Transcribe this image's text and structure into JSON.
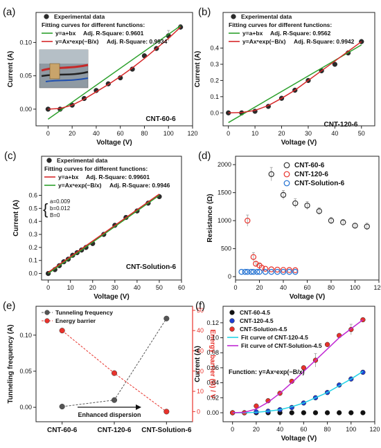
{
  "chart_data": [
    {
      "id": "a",
      "type": "scatter",
      "panel_label": "(a)",
      "xlabel": "Voltage (V)",
      "ylabel": "Current (A)",
      "xlim": [
        -10,
        120
      ],
      "ylim": [
        -0.025,
        0.145
      ],
      "xticks": [
        0,
        20,
        40,
        60,
        80,
        100,
        120
      ],
      "xticklabels": [
        "0",
        "20",
        "40",
        "60",
        "80",
        "100",
        "120"
      ],
      "yticks": [
        0.0,
        0.05,
        0.1
      ],
      "yticklabels": [
        "0.00",
        "0.05",
        "0.10"
      ],
      "annotation": "CNT-60-6",
      "legend": {
        "placement": "top-left",
        "entries": [
          {
            "kind": "marker",
            "label": "Experimental data",
            "color": "#2b2b2b"
          },
          {
            "kind": "text",
            "label": "Fitting curves for different functions:"
          },
          {
            "kind": "line",
            "label": "y=a+bx",
            "stat": "Adj. R-Square: 0.9601",
            "color": "#2ca02c"
          },
          {
            "kind": "line",
            "label": "y=Axⁿexp(−B/x)",
            "stat": "Adj. R-Square: 0.9934",
            "color": "#d62728"
          }
        ]
      },
      "inset_photo": true,
      "series": [
        {
          "kind": "points",
          "color": "#2b2b2b",
          "x": [
            0,
            10,
            20,
            30,
            40,
            50,
            60,
            70,
            80,
            90,
            100,
            110
          ],
          "y": [
            0.0,
            0.0,
            0.006,
            0.016,
            0.028,
            0.038,
            0.047,
            0.06,
            0.08,
            0.091,
            0.11,
            0.123
          ],
          "err": [
            0,
            0,
            0,
            0,
            0,
            0,
            0,
            0,
            0,
            0,
            0.008,
            0.004
          ]
        },
        {
          "kind": "line",
          "color": "#2ca02c",
          "x": [
            0,
            110
          ],
          "y": [
            -0.015,
            0.125
          ]
        },
        {
          "kind": "line",
          "color": "#d62728",
          "x": [
            0,
            10,
            20,
            30,
            40,
            50,
            60,
            70,
            80,
            90,
            100,
            110
          ],
          "y": [
            0.0,
            0.001,
            0.006,
            0.015,
            0.026,
            0.037,
            0.049,
            0.062,
            0.076,
            0.091,
            0.106,
            0.123
          ]
        }
      ]
    },
    {
      "id": "b",
      "type": "scatter",
      "panel_label": "(b)",
      "xlabel": "Voltage (V)",
      "ylabel": "Current (A)",
      "xlim": [
        -2,
        55
      ],
      "ylim": [
        -0.08,
        0.62
      ],
      "xticks": [
        0,
        10,
        20,
        30,
        40,
        50
      ],
      "xticklabels": [
        "0",
        "10",
        "20",
        "30",
        "40",
        "50"
      ],
      "yticks": [
        0.0,
        0.1,
        0.2,
        0.3,
        0.4
      ],
      "yticklabels": [
        "0.0",
        "0.1",
        "0.2",
        "0.3",
        "0.4"
      ],
      "annotation": "CNT-120-6",
      "legend": {
        "placement": "top-left",
        "entries": [
          {
            "kind": "marker",
            "label": "Experimental data",
            "color": "#2b2b2b"
          },
          {
            "kind": "text",
            "label": "Fitting curves for different functions:"
          },
          {
            "kind": "line",
            "label": "y=a+bx",
            "stat": "Adj. R-Square: 0.9562",
            "color": "#2ca02c"
          },
          {
            "kind": "line",
            "label": "y=Axⁿexp(−B/x)",
            "stat": "Adj. R-Square: 0.9942",
            "color": "#d62728"
          }
        ]
      },
      "series": [
        {
          "kind": "points",
          "color": "#2b2b2b",
          "x": [
            0,
            5,
            10,
            15,
            20,
            25,
            30,
            35,
            40,
            45,
            50
          ],
          "y": [
            0.0,
            0.0,
            0.01,
            0.04,
            0.09,
            0.14,
            0.2,
            0.26,
            0.3,
            0.37,
            0.44
          ],
          "err": [
            0,
            0,
            0,
            0,
            0,
            0,
            0,
            0,
            0,
            0,
            0
          ]
        },
        {
          "kind": "line",
          "color": "#2ca02c",
          "x": [
            0,
            50
          ],
          "y": [
            -0.06,
            0.42
          ]
        },
        {
          "kind": "line",
          "color": "#d62728",
          "x": [
            0,
            5,
            10,
            15,
            20,
            25,
            30,
            35,
            40,
            45,
            50
          ],
          "y": [
            0.0,
            0.002,
            0.015,
            0.045,
            0.09,
            0.14,
            0.2,
            0.26,
            0.32,
            0.38,
            0.44
          ]
        }
      ]
    },
    {
      "id": "c",
      "type": "scatter",
      "panel_label": "(c)",
      "xlabel": "Voltage (V)",
      "ylabel": "Current (A)",
      "xlim": [
        -3,
        60
      ],
      "ylim": [
        -0.05,
        0.9
      ],
      "xticks": [
        0,
        10,
        20,
        30,
        40,
        50,
        60
      ],
      "xticklabels": [
        "0",
        "10",
        "20",
        "30",
        "40",
        "50",
        "60"
      ],
      "yticks": [
        0.0,
        0.1,
        0.2,
        0.3,
        0.4,
        0.5,
        0.6
      ],
      "yticklabels": [
        "0.0",
        "0.1",
        "0.2",
        "0.3",
        "0.4",
        "0.5",
        "0.6"
      ],
      "annotation": "CNT-Solution-6",
      "params": [
        "a=0.009",
        "b=0.012",
        "B=0"
      ],
      "legend": {
        "placement": "top-left",
        "entries": [
          {
            "kind": "marker",
            "label": "Experimental data",
            "color": "#2b2b2b"
          },
          {
            "kind": "text",
            "label": "Fitting curves for different functions:"
          },
          {
            "kind": "line",
            "label": "y=a+bx",
            "stat": "Adj. R-Square: 0.99601",
            "color": "#d62728"
          },
          {
            "kind": "line",
            "label": "y=Axⁿexp(−B/x)",
            "stat": "Adj. R-Square: 0.9946",
            "color": "#2ca02c"
          }
        ]
      },
      "series": [
        {
          "kind": "points",
          "color": "#2b2b2b",
          "x": [
            0,
            3,
            5,
            7,
            9,
            11,
            13,
            15,
            17,
            20,
            25,
            30,
            35,
            40,
            45,
            50
          ],
          "y": [
            0.0,
            0.03,
            0.06,
            0.09,
            0.11,
            0.14,
            0.16,
            0.18,
            0.2,
            0.23,
            0.3,
            0.37,
            0.43,
            0.48,
            0.54,
            0.59
          ],
          "err": [
            0,
            0,
            0,
            0,
            0,
            0,
            0,
            0,
            0,
            0,
            0,
            0,
            0,
            0,
            0,
            0
          ]
        },
        {
          "kind": "line",
          "color": "#2ca02c",
          "x": [
            0,
            50
          ],
          "y": [
            0.0,
            0.6
          ]
        },
        {
          "kind": "line",
          "color": "#d62728",
          "x": [
            0,
            50
          ],
          "y": [
            0.009,
            0.609
          ]
        }
      ]
    },
    {
      "id": "d",
      "type": "scatter",
      "panel_label": "(d)",
      "xlabel": "Voltage (V)",
      "ylabel": "Resistance (Ω)",
      "xlim": [
        0,
        120
      ],
      "ylim": [
        -60,
        2150
      ],
      "xticks": [
        0,
        20,
        40,
        60,
        80,
        100,
        120
      ],
      "xticklabels": [
        "0",
        "20",
        "40",
        "60",
        "80",
        "100",
        "120"
      ],
      "yticks": [
        0,
        500,
        1000,
        1500,
        2000
      ],
      "yticklabels": [
        "0",
        "500",
        "1000",
        "1500",
        "2000"
      ],
      "legend": {
        "placement": "top-right",
        "entries": [
          {
            "kind": "open-marker",
            "label": "CNT-60-6",
            "color": "#333333"
          },
          {
            "kind": "open-marker",
            "label": "CNT-120-6",
            "color": "#e8322b"
          },
          {
            "kind": "open-marker",
            "label": "CNT-Solution-6",
            "color": "#1f6fd1"
          }
        ]
      },
      "series": [
        {
          "name": "CNT-60-6",
          "kind": "open-points",
          "color": "#333333",
          "x": [
            30,
            40,
            50,
            60,
            70,
            80,
            90,
            100,
            110
          ],
          "y": [
            1830,
            1460,
            1310,
            1270,
            1170,
            1000,
            970,
            910,
            895
          ],
          "err": [
            120,
            80,
            80,
            70,
            60,
            60,
            50,
            40,
            60
          ]
        },
        {
          "name": "CNT-120-6",
          "kind": "open-points",
          "color": "#e8322b",
          "x": [
            10,
            15,
            17,
            20,
            22,
            25,
            30,
            35,
            40,
            45,
            50
          ],
          "y": [
            1000,
            350,
            230,
            200,
            160,
            140,
            130,
            125,
            120,
            118,
            115
          ],
          "err": [
            100,
            80,
            40,
            30,
            0,
            0,
            0,
            0,
            0,
            0,
            0
          ]
        },
        {
          "name": "CNT-Solution-6",
          "kind": "open-points",
          "color": "#1f6fd1",
          "x": [
            5,
            8,
            10,
            13,
            15,
            18,
            20,
            25,
            30,
            35,
            40,
            45,
            50
          ],
          "y": [
            85,
            85,
            85,
            85,
            85,
            85,
            85,
            85,
            85,
            85,
            85,
            85,
            85
          ],
          "err": [
            0,
            0,
            0,
            0,
            0,
            0,
            0,
            0,
            0,
            0,
            0,
            0,
            0
          ]
        }
      ]
    },
    {
      "id": "e",
      "type": "line",
      "panel_label": "(e)",
      "xlabel": "",
      "ylabel": "Tunneling frequency (A)",
      "y2label": "Energy barrier (B) / V",
      "categories": [
        "CNT-60-6",
        "CNT-120-6",
        "CNT-Solution-6"
      ],
      "ylim": [
        -0.02,
        0.14
      ],
      "y2lim": [
        -5,
        52
      ],
      "yticks": [
        0.0,
        0.05,
        0.1
      ],
      "yticklabels": [
        "0.00",
        "0.05",
        "0.10"
      ],
      "y2ticks": [
        0,
        10,
        20,
        30,
        40,
        50
      ],
      "y2ticklabels": [
        "0",
        "10",
        "20",
        "30",
        "40",
        "50"
      ],
      "arrow_label": "Enhanced dispersion",
      "legend": {
        "placement": "top-left",
        "entries": [
          {
            "kind": "marker-line",
            "label": "Tunneling frequency",
            "color": "#555555"
          },
          {
            "kind": "marker-line",
            "label": "Energy barrier",
            "color": "#e8322b"
          }
        ]
      },
      "series": [
        {
          "name": "Tunneling frequency",
          "axis": "left",
          "color": "#555555",
          "values": [
            0.001,
            0.01,
            0.123
          ]
        },
        {
          "name": "Energy barrier",
          "axis": "right",
          "color": "#e8322b",
          "values": [
            40,
            19,
            0
          ]
        }
      ]
    },
    {
      "id": "f",
      "type": "scatter",
      "panel_label": "(f)",
      "xlabel": "Voltage (V)",
      "ylabel": "Current (A)",
      "xlim": [
        -8,
        120
      ],
      "ylim": [
        -0.012,
        0.142
      ],
      "xticks": [
        0,
        20,
        40,
        60,
        80,
        100,
        120
      ],
      "xticklabels": [
        "0",
        "20",
        "40",
        "60",
        "80",
        "100",
        "120"
      ],
      "yticks": [
        0.0,
        0.02,
        0.04,
        0.06,
        0.08,
        0.1,
        0.12
      ],
      "yticklabels": [
        "0.00",
        "0.02",
        "0.04",
        "0.06",
        "0.08",
        "0.10",
        "0.12"
      ],
      "function_text": "Function: y=Axⁿexp(−B/x)",
      "legend": {
        "placement": "top-left",
        "entries": [
          {
            "kind": "marker",
            "label": "CNT-60-4.5",
            "color": "#111111"
          },
          {
            "kind": "marker",
            "label": "CNT-120-4.5",
            "color": "#1f3fd1"
          },
          {
            "kind": "marker",
            "label": "CNT-Solution-4.5",
            "color": "#e8322b"
          },
          {
            "kind": "line",
            "label": "Fit curve of CNT-120-4.5",
            "color": "#22d3e6"
          },
          {
            "kind": "line",
            "label": "Fit curve of CNT-Solution-4.5",
            "color": "#c026d3"
          }
        ]
      },
      "series": [
        {
          "name": "CNT-60-4.5",
          "kind": "points",
          "color": "#111111",
          "x": [
            0,
            10,
            20,
            30,
            40,
            50,
            60,
            70,
            80,
            90,
            100,
            110
          ],
          "y": [
            0,
            0,
            0,
            0,
            0,
            0,
            0,
            0,
            0,
            0,
            0,
            0
          ],
          "err": [
            0,
            0,
            0,
            0,
            0,
            0,
            0,
            0,
            0,
            0,
            0,
            0
          ]
        },
        {
          "name": "CNT-120-4.5",
          "kind": "points",
          "color": "#1f3fd1",
          "x": [
            0,
            10,
            20,
            30,
            40,
            50,
            60,
            70,
            80,
            90,
            100,
            110
          ],
          "y": [
            0,
            0,
            0.001,
            0.002,
            0.004,
            0.007,
            0.013,
            0.02,
            0.027,
            0.037,
            0.045,
            0.054
          ],
          "err": [
            0,
            0,
            0,
            0,
            0,
            0,
            0,
            0,
            0,
            0,
            0,
            0
          ]
        },
        {
          "name": "CNT-Solution-4.5",
          "kind": "points",
          "color": "#e8322b",
          "x": [
            0,
            10,
            20,
            30,
            40,
            50,
            60,
            70,
            80,
            90,
            100,
            110
          ],
          "y": [
            0,
            0,
            0.009,
            0.016,
            0.026,
            0.042,
            0.06,
            0.07,
            0.091,
            0.103,
            0.111,
            0.124
          ],
          "err": [
            0,
            0,
            0,
            0,
            0,
            0,
            0,
            0.009,
            0,
            0,
            0.007,
            0
          ]
        },
        {
          "name": "Fit curve of CNT-120-4.5",
          "kind": "line",
          "color": "#22d3e6",
          "x": [
            0,
            10,
            20,
            30,
            40,
            50,
            60,
            70,
            80,
            90,
            100,
            110
          ],
          "y": [
            0,
            0,
            0.0005,
            0.002,
            0.004,
            0.008,
            0.013,
            0.02,
            0.027,
            0.036,
            0.045,
            0.055
          ]
        },
        {
          "name": "Fit curve of CNT-Solution-4.5",
          "kind": "line",
          "color": "#c026d3",
          "x": [
            0,
            10,
            20,
            30,
            40,
            50,
            60,
            70,
            80,
            90,
            100,
            110
          ],
          "y": [
            0,
            0.0005,
            0.005,
            0.014,
            0.026,
            0.04,
            0.055,
            0.07,
            0.085,
            0.1,
            0.112,
            0.124
          ]
        }
      ]
    }
  ]
}
